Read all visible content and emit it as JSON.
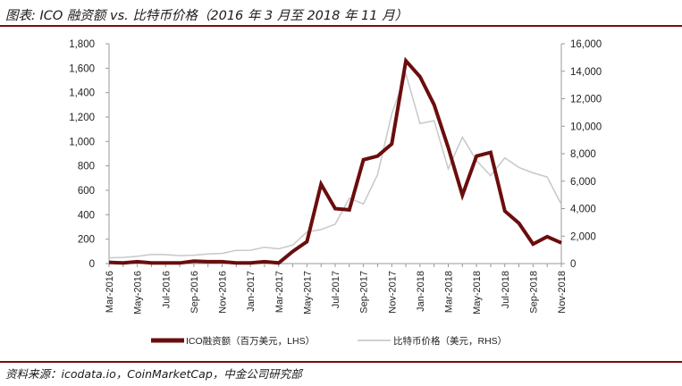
{
  "title": "图表: ICO 融资额 vs. 比特币价格（2016 年 3 月至 2018 年 11 月）",
  "source": "资料来源：icodata.io，CoinMarketCap，中金公司研究部",
  "colors": {
    "accent": "#7a0c0c",
    "ico_line": "#6b0d0d",
    "btc_line": "#c8c8c8"
  },
  "chart_data": {
    "type": "line",
    "categories": [
      "Mar-2016",
      "Apr-2016",
      "May-2016",
      "Jun-2016",
      "Jul-2016",
      "Aug-2016",
      "Sep-2016",
      "Oct-2016",
      "Nov-2016",
      "Dec-2016",
      "Jan-2017",
      "Feb-2017",
      "Mar-2017",
      "Apr-2017",
      "May-2017",
      "Jun-2017",
      "Jul-2017",
      "Aug-2017",
      "Sep-2017",
      "Oct-2017",
      "Nov-2017",
      "Dec-2017",
      "Jan-2018",
      "Feb-2018",
      "Mar-2018",
      "Apr-2018",
      "May-2018",
      "Jun-2018",
      "Jul-2018",
      "Aug-2018",
      "Sep-2018",
      "Oct-2018",
      "Nov-2018"
    ],
    "x_tick_labels": [
      "Mar-2016",
      "May-2016",
      "Jul-2016",
      "Sep-2016",
      "Nov-2016",
      "Jan-2017",
      "Mar-2017",
      "May-2017",
      "Jul-2017",
      "Sep-2017",
      "Nov-2017",
      "Jan-2018",
      "Mar-2018",
      "May-2018",
      "Jul-2018",
      "Sep-2018",
      "Nov-2018"
    ],
    "y_left": {
      "min": 0,
      "max": 1800,
      "ticks": [
        "0",
        "200",
        "400",
        "600",
        "800",
        "1,000",
        "1,200",
        "1,400",
        "1,600",
        "1,800"
      ]
    },
    "y_right": {
      "min": 0,
      "max": 16000,
      "ticks": [
        "0",
        "2,000",
        "4,000",
        "6,000",
        "8,000",
        "10,000",
        "12,000",
        "14,000",
        "16,000"
      ]
    },
    "series": [
      {
        "name": "ICO融资额（百万美元，LHS）",
        "axis": "left",
        "values": [
          10,
          5,
          15,
          5,
          5,
          5,
          20,
          15,
          15,
          5,
          5,
          15,
          5,
          100,
          180,
          650,
          450,
          440,
          850,
          880,
          980,
          1660,
          1530,
          1300,
          950,
          560,
          880,
          910,
          430,
          330,
          160,
          220,
          170
        ]
      },
      {
        "name": "比特币价格（美元，RHS）",
        "axis": "right",
        "values": [
          420,
          450,
          530,
          670,
          650,
          580,
          610,
          700,
          740,
          960,
          970,
          1190,
          1070,
          1350,
          2300,
          2480,
          2870,
          4760,
          4340,
          6470,
          10900,
          13800,
          10200,
          10400,
          6900,
          9200,
          7500,
          6400,
          7700,
          7000,
          6600,
          6300,
          4300
        ]
      }
    ],
    "legend_position": "bottom",
    "grid": false
  }
}
